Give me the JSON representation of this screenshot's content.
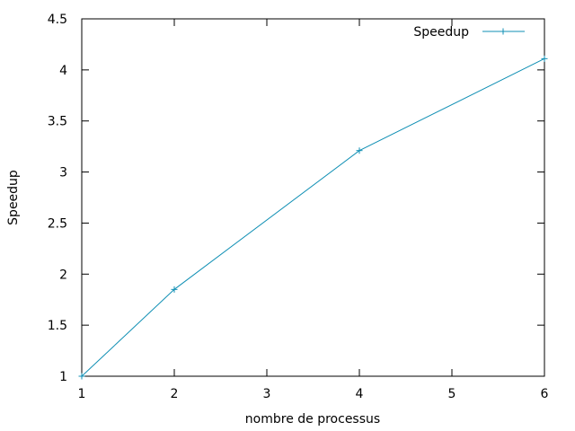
{
  "chart_data": {
    "type": "line",
    "title": "",
    "xlabel": "nombre de processus",
    "ylabel": "Speedup",
    "xlim": [
      1,
      6
    ],
    "ylim": [
      1,
      4.5
    ],
    "xticks": [
      "1",
      "2",
      "3",
      "4",
      "5",
      "6"
    ],
    "yticks": [
      "1",
      "1.5",
      "2",
      "2.5",
      "3",
      "3.5",
      "4",
      "4.5"
    ],
    "grid": false,
    "legend_position": "top-right",
    "series": [
      {
        "name": "Speedup",
        "color": "#0f8fb4",
        "marker": "plus",
        "x": [
          1,
          2,
          4,
          6
        ],
        "y": [
          1,
          1.85,
          3.21,
          4.11
        ]
      }
    ]
  }
}
